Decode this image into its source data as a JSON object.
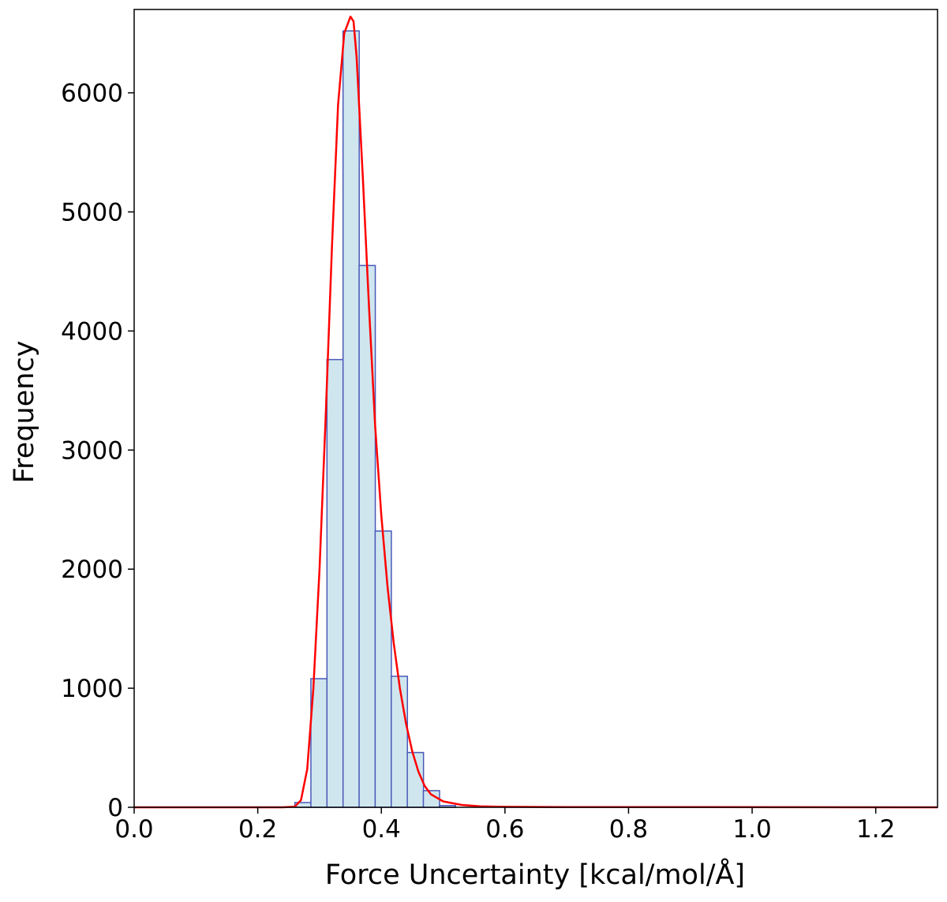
{
  "chart_data": {
    "type": "bar",
    "title": "",
    "xlabel": "Force Uncertainty [kcal/mol/Å]",
    "ylabel": "Frequency",
    "xlim": [
      0.0,
      1.3
    ],
    "ylim": [
      0,
      6700
    ],
    "grid": false,
    "legend": "none",
    "x_ticks": [
      "0.0",
      "0.2",
      "0.4",
      "0.6",
      "0.8",
      "1.0",
      "1.2"
    ],
    "y_ticks": [
      "0",
      "1000",
      "2000",
      "3000",
      "4000",
      "5000",
      "6000"
    ],
    "bin_width": 0.0262,
    "bins": [
      {
        "x0": 0.26,
        "value": 40
      },
      {
        "x0": 0.286,
        "value": 1080
      },
      {
        "x0": 0.312,
        "value": 3760
      },
      {
        "x0": 0.338,
        "value": 6520
      },
      {
        "x0": 0.364,
        "value": 4550
      },
      {
        "x0": 0.39,
        "value": 2320
      },
      {
        "x0": 0.416,
        "value": 1100
      },
      {
        "x0": 0.442,
        "value": 460
      },
      {
        "x0": 0.468,
        "value": 140
      },
      {
        "x0": 0.494,
        "value": 15
      }
    ],
    "kde_curve": {
      "x": [
        0.0,
        0.24,
        0.26,
        0.27,
        0.28,
        0.29,
        0.3,
        0.31,
        0.32,
        0.33,
        0.34,
        0.35,
        0.355,
        0.36,
        0.37,
        0.38,
        0.39,
        0.4,
        0.41,
        0.42,
        0.43,
        0.44,
        0.45,
        0.46,
        0.47,
        0.48,
        0.5,
        0.53,
        0.56,
        0.6,
        0.7,
        0.9,
        1.3
      ],
      "y": [
        0,
        0,
        5,
        60,
        320,
        1000,
        2000,
        3300,
        4700,
        5900,
        6500,
        6640,
        6600,
        6300,
        5300,
        4200,
        3200,
        2450,
        1850,
        1380,
        1000,
        700,
        470,
        300,
        180,
        110,
        50,
        20,
        8,
        4,
        2,
        1,
        0
      ]
    },
    "colors": {
      "bar_fill": "#cfe6ef",
      "bar_edge": "#4a58b8",
      "curve": "#ff0000",
      "axes": "#000000"
    }
  }
}
